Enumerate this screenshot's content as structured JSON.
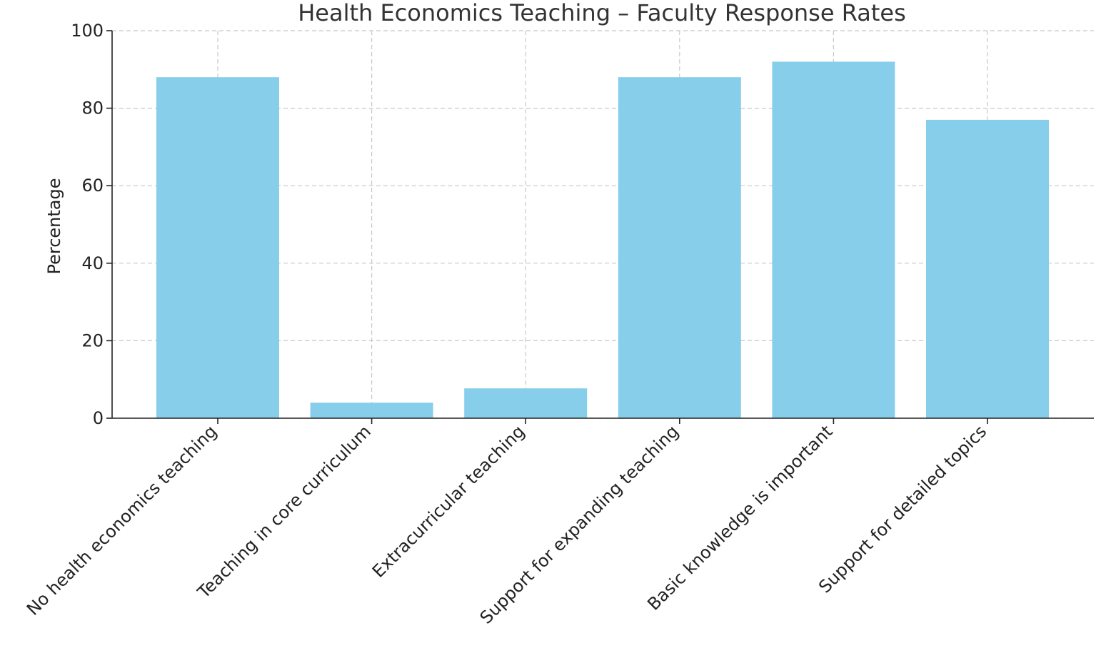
{
  "colors": {
    "bar": "#87CEEB",
    "grid": "#c8c8c8",
    "axis": "#222222",
    "title": "#333333"
  },
  "chart_data": {
    "type": "bar",
    "title": "Health Economics Teaching – Faculty Response Rates",
    "xlabel": "",
    "ylabel": "Percentage",
    "ylim": [
      0,
      100
    ],
    "yticks": [
      0,
      20,
      40,
      60,
      80,
      100
    ],
    "categories": [
      "No health economics teaching",
      "Teaching in core curriculum",
      "Extracurricular teaching",
      "Support for expanding teaching",
      "Basic knowledge is important",
      "Support for detailed topics"
    ],
    "values": [
      88,
      4,
      7.7,
      88,
      92,
      77
    ],
    "grid": true,
    "legend": "none"
  }
}
